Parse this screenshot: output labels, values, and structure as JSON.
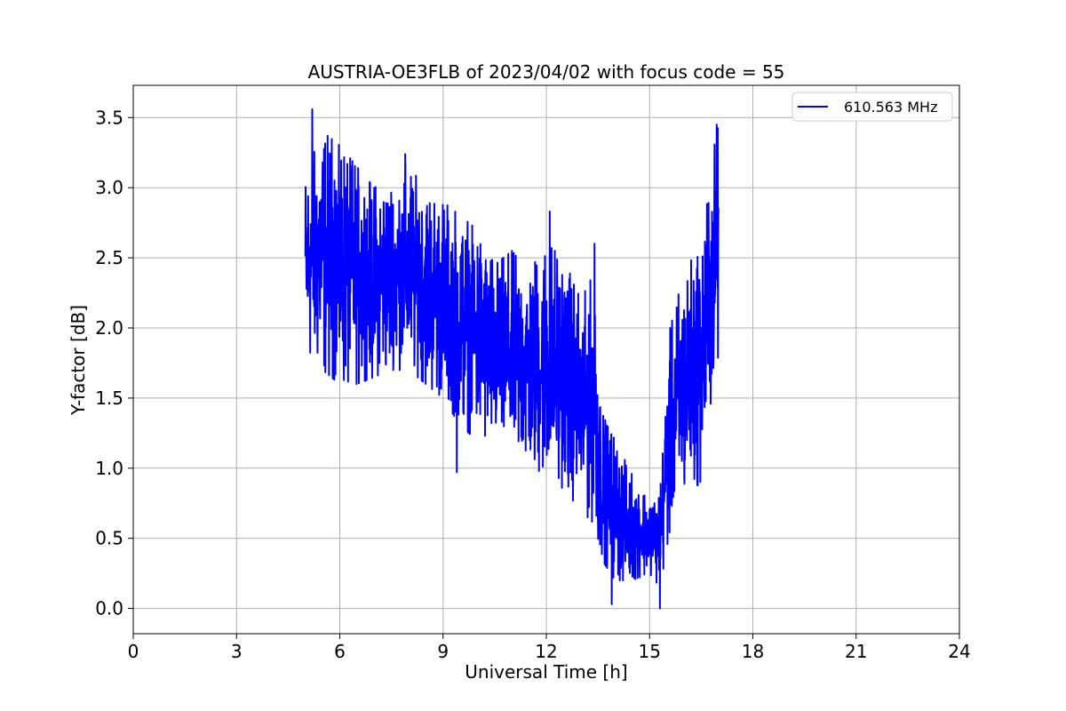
{
  "chart_data": {
    "type": "line",
    "title": "AUSTRIA-OE3FLB of 2023/04/02 with focus code = 55",
    "xlabel": "Universal Time [h]",
    "ylabel": "Y-factor [dB]",
    "xlim": [
      0,
      24
    ],
    "ylim": [
      -0.18,
      3.73
    ],
    "xticks": [
      0,
      3,
      6,
      9,
      12,
      15,
      18,
      21,
      24
    ],
    "xtick_labels": [
      "0",
      "3",
      "6",
      "9",
      "12",
      "15",
      "18",
      "21",
      "24"
    ],
    "yticks": [
      0.0,
      0.5,
      1.0,
      1.5,
      2.0,
      2.5,
      3.0,
      3.5
    ],
    "ytick_labels": [
      "0.0",
      "0.5",
      "1.0",
      "1.5",
      "2.0",
      "2.5",
      "3.0",
      "3.5"
    ],
    "grid": true,
    "legend_position": "upper right",
    "series": [
      {
        "name": "610.563 MHz",
        "color": "#0000ff",
        "x_range": [
          5.0,
          17.0
        ],
        "envelope": {
          "x": [
            5.0,
            5.5,
            6.0,
            6.5,
            7.0,
            7.5,
            8.0,
            8.5,
            9.0,
            9.5,
            10.0,
            10.5,
            11.0,
            11.5,
            12.0,
            12.5,
            13.0,
            13.4,
            13.6,
            14.0,
            14.5,
            15.0,
            15.3,
            15.6,
            16.0,
            16.5,
            16.8,
            17.0
          ],
          "low": [
            1.8,
            1.7,
            1.6,
            1.6,
            1.65,
            1.7,
            1.7,
            1.6,
            1.5,
            1.3,
            1.2,
            1.15,
            1.1,
            1.0,
            0.95,
            0.85,
            0.7,
            0.6,
            0.35,
            0.2,
            0.2,
            0.25,
            0.15,
            0.55,
            0.8,
            0.9,
            1.5,
            1.8
          ],
          "high": [
            3.1,
            3.4,
            3.3,
            3.15,
            3.0,
            3.05,
            3.15,
            3.0,
            2.9,
            2.8,
            2.7,
            2.45,
            2.55,
            2.4,
            2.6,
            2.5,
            2.2,
            2.4,
            1.4,
            1.2,
            0.95,
            0.8,
            0.85,
            2.0,
            2.4,
            2.6,
            3.2,
            3.45
          ]
        },
        "notable_points": [
          {
            "x": 5.2,
            "y": 3.56
          },
          {
            "x": 7.9,
            "y": 3.24
          },
          {
            "x": 9.4,
            "y": 0.97
          },
          {
            "x": 12.1,
            "y": 2.83
          },
          {
            "x": 13.4,
            "y": 2.6
          },
          {
            "x": 13.9,
            "y": 0.03
          },
          {
            "x": 15.3,
            "y": 0.0
          },
          {
            "x": 16.95,
            "y": 3.45
          }
        ]
      }
    ]
  }
}
